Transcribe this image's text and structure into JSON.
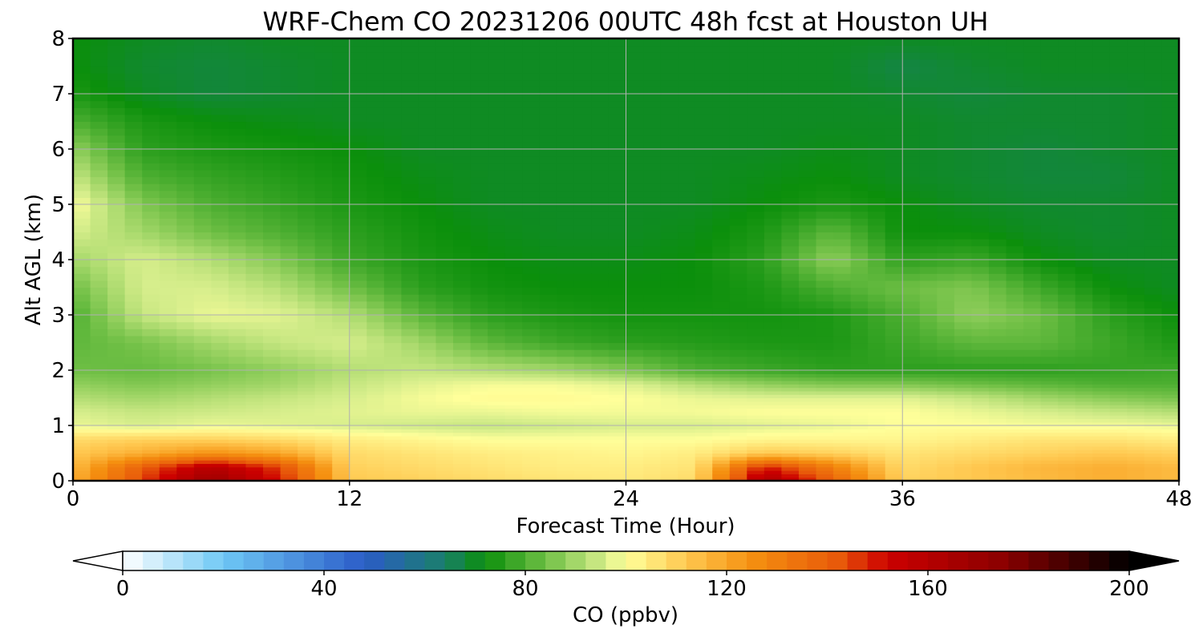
{
  "chart_data": {
    "type": "heatmap",
    "title": "WRF-Chem CO  20231206 00UTC 48h fcst at Houston UH",
    "xlabel": "Forecast Time (Hour)",
    "ylabel": "Alt AGL (km)",
    "xlim": [
      0,
      48
    ],
    "ylim": [
      0,
      8
    ],
    "xticks": [
      0,
      12,
      24,
      36,
      48
    ],
    "yticks": [
      0,
      1,
      2,
      3,
      4,
      5,
      6,
      7,
      8
    ],
    "grid": true,
    "colorbar": {
      "label": "CO  (ppbv)",
      "range": [
        0,
        200
      ],
      "ticks": [
        0,
        40,
        80,
        120,
        160,
        200
      ],
      "extend": "both",
      "orientation": "horizontal"
    },
    "x": [
      0,
      3,
      6,
      9,
      12,
      15,
      18,
      21,
      24,
      27,
      30,
      33,
      36,
      39,
      42,
      45,
      48
    ],
    "y": [
      0,
      0.25,
      0.5,
      0.75,
      1,
      1.25,
      1.5,
      1.75,
      2,
      2.5,
      3,
      3.5,
      4,
      4.5,
      5,
      5.5,
      6,
      6.5,
      7,
      7.5,
      8
    ],
    "z": [
      [
        118,
        145,
        170,
        150,
        112,
        110,
        108,
        106,
        105,
        108,
        165,
        140,
        110,
        112,
        115,
        118,
        115
      ],
      [
        115,
        140,
        160,
        145,
        110,
        108,
        106,
        104,
        104,
        106,
        150,
        130,
        108,
        112,
        116,
        118,
        115
      ],
      [
        112,
        118,
        125,
        120,
        108,
        106,
        104,
        103,
        102,
        104,
        112,
        110,
        106,
        108,
        110,
        112,
        110
      ],
      [
        108,
        110,
        110,
        108,
        104,
        102,
        100,
        100,
        100,
        100,
        102,
        102,
        102,
        104,
        106,
        106,
        104
      ],
      [
        98,
        96,
        98,
        97,
        96,
        95,
        94,
        95,
        96,
        96,
        97,
        98,
        100,
        100,
        99,
        99,
        98
      ],
      [
        96,
        94,
        95,
        96,
        97,
        98,
        98,
        99,
        99,
        99,
        100,
        100,
        100,
        98,
        96,
        94,
        92
      ],
      [
        92,
        90,
        92,
        94,
        96,
        99,
        101,
        101,
        100,
        98,
        97,
        97,
        97,
        94,
        90,
        87,
        85
      ],
      [
        88,
        86,
        88,
        90,
        94,
        97,
        99,
        99,
        97,
        92,
        88,
        86,
        86,
        84,
        82,
        80,
        80
      ],
      [
        84,
        83,
        85,
        88,
        92,
        94,
        92,
        90,
        86,
        80,
        78,
        76,
        76,
        76,
        76,
        77,
        78
      ],
      [
        82,
        85,
        90,
        94,
        96,
        90,
        82,
        78,
        76,
        75,
        74,
        74,
        78,
        82,
        82,
        78,
        74
      ],
      [
        80,
        94,
        98,
        97,
        92,
        82,
        76,
        74,
        73,
        73,
        73,
        74,
        80,
        88,
        84,
        76,
        72
      ],
      [
        84,
        96,
        96,
        92,
        84,
        76,
        73,
        72,
        72,
        72,
        74,
        80,
        84,
        86,
        78,
        72,
        70
      ],
      [
        90,
        96,
        92,
        86,
        78,
        74,
        72,
        71,
        71,
        72,
        76,
        88,
        76,
        78,
        72,
        70,
        70
      ],
      [
        96,
        90,
        84,
        80,
        76,
        73,
        71,
        70,
        70,
        71,
        74,
        82,
        72,
        72,
        70,
        69,
        70
      ],
      [
        100,
        86,
        80,
        77,
        74,
        72,
        70,
        70,
        70,
        70,
        72,
        74,
        72,
        70,
        69,
        69,
        70
      ],
      [
        94,
        80,
        77,
        75,
        73,
        71,
        70,
        70,
        70,
        70,
        71,
        72,
        70,
        69,
        68,
        68,
        70
      ],
      [
        88,
        76,
        74,
        73,
        72,
        70,
        70,
        70,
        70,
        70,
        70,
        71,
        70,
        69,
        68,
        69,
        70
      ],
      [
        80,
        74,
        72,
        71,
        70,
        70,
        70,
        70,
        70,
        70,
        70,
        70,
        70,
        69,
        69,
        69,
        70
      ],
      [
        74,
        70,
        68,
        69,
        70,
        70,
        70,
        70,
        70,
        70,
        70,
        70,
        69,
        68,
        69,
        69,
        70
      ],
      [
        72,
        69,
        68,
        69,
        70,
        70,
        70,
        70,
        70,
        70,
        70,
        70,
        67,
        69,
        70,
        70,
        70
      ],
      [
        72,
        70,
        69,
        70,
        70,
        70,
        70,
        70,
        70,
        70,
        70,
        70,
        70,
        70,
        70,
        70,
        70
      ]
    ],
    "colors": {
      "colormap_stops": [
        {
          "value": 0,
          "color": "#ffffff"
        },
        {
          "value": 20,
          "color": "#6ec8f5"
        },
        {
          "value": 48,
          "color": "#2b5cc8"
        },
        {
          "value": 64,
          "color": "#1a7f6a"
        },
        {
          "value": 72,
          "color": "#0b8f0b"
        },
        {
          "value": 84,
          "color": "#6fbf45"
        },
        {
          "value": 96,
          "color": "#d7ee8c"
        },
        {
          "value": 100,
          "color": "#ffff9a"
        },
        {
          "value": 112,
          "color": "#ffc850"
        },
        {
          "value": 125,
          "color": "#f59010"
        },
        {
          "value": 142,
          "color": "#e85a0a"
        },
        {
          "value": 152,
          "color": "#cc0000"
        },
        {
          "value": 175,
          "color": "#8b0000"
        },
        {
          "value": 200,
          "color": "#000000"
        }
      ],
      "grid": "#b0b0b0"
    }
  }
}
